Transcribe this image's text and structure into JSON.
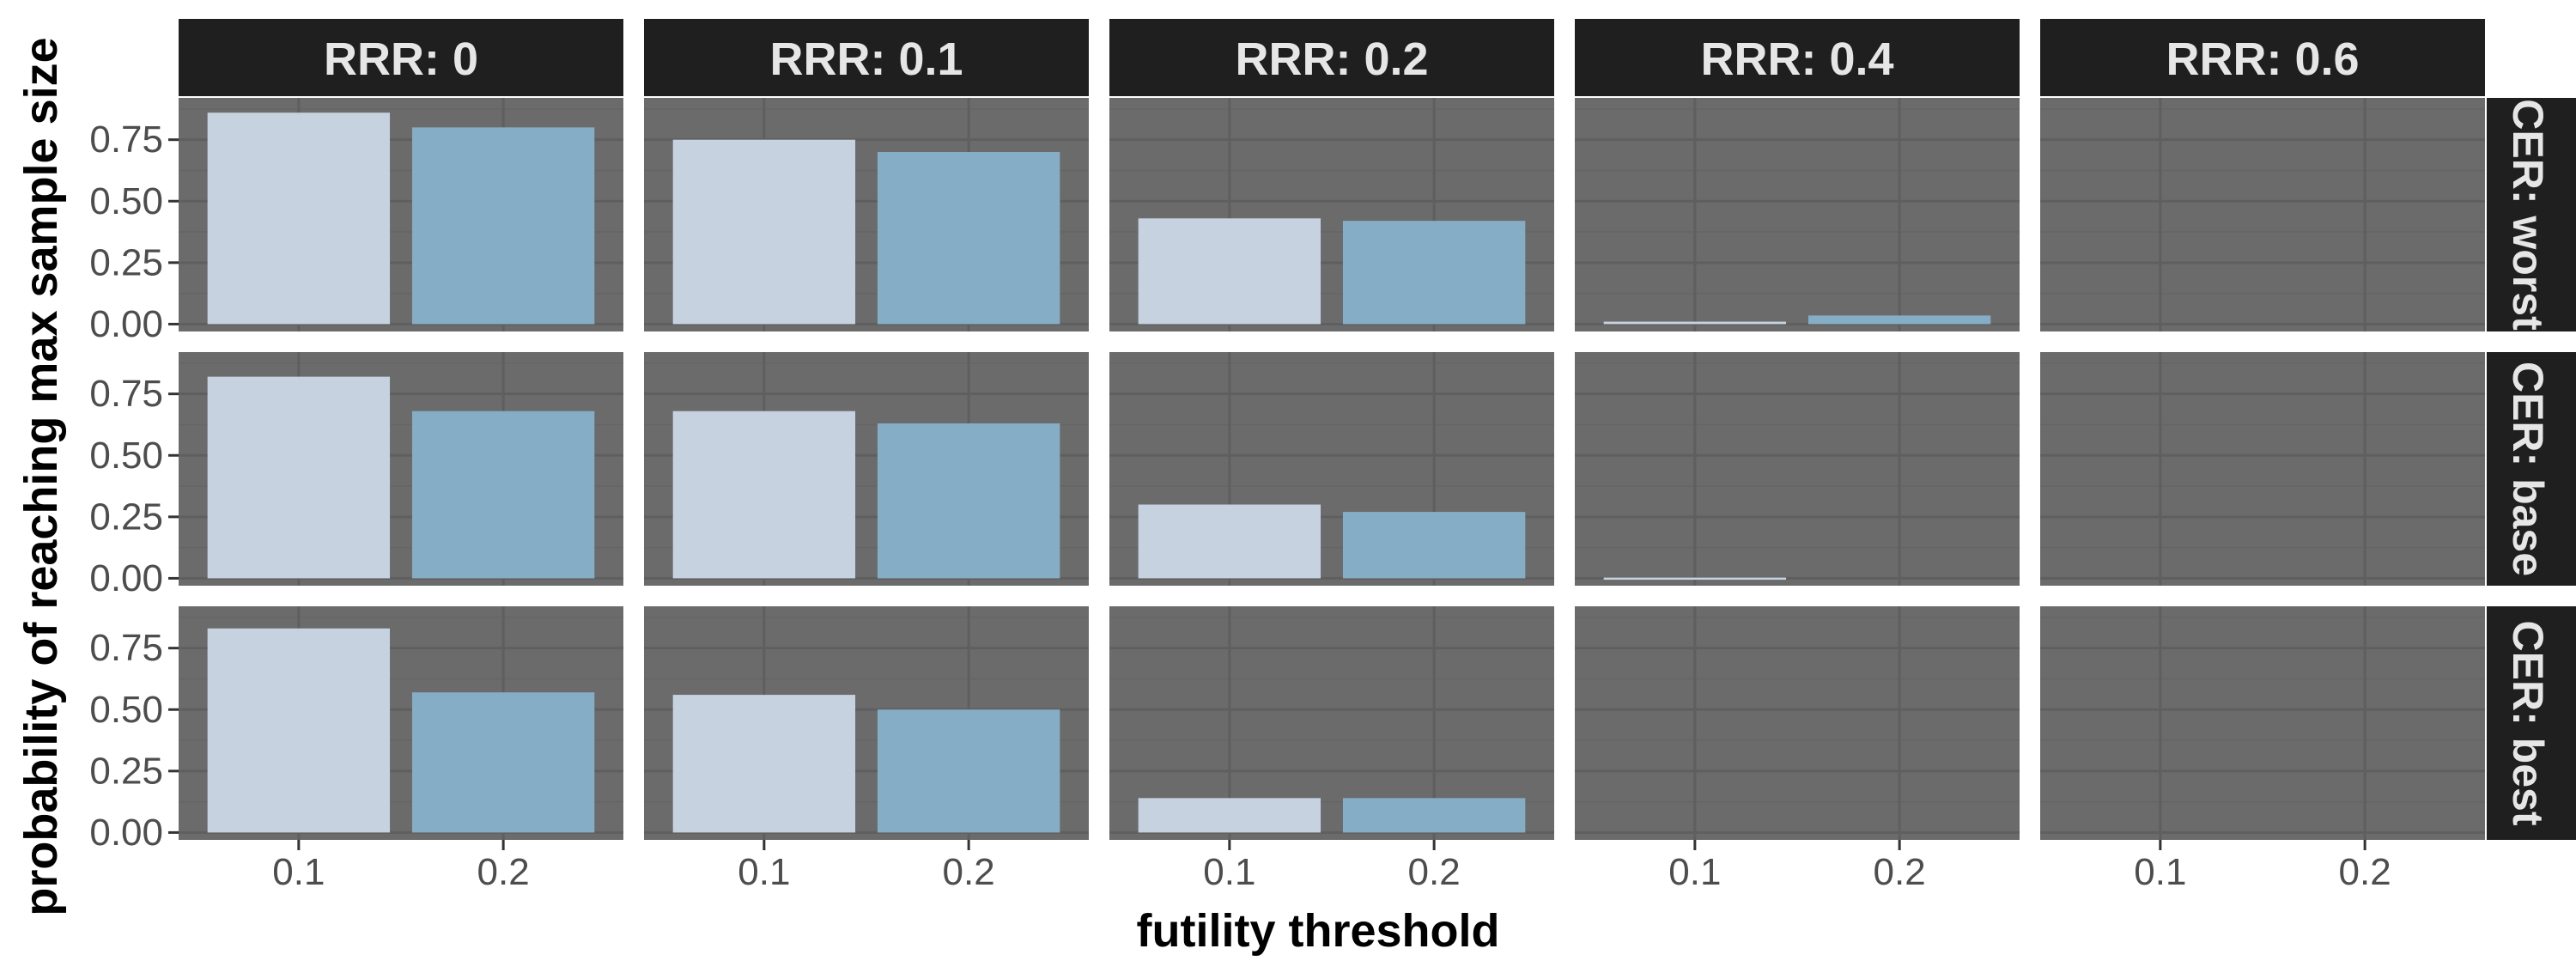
{
  "chart_data": {
    "type": "bar",
    "xlabel": "futility threshold",
    "ylabel": "probability of reaching max sample size",
    "x_categories": [
      "0.1",
      "0.2"
    ],
    "y_ticks": [
      "0.00",
      "0.25",
      "0.50",
      "0.75"
    ],
    "ylim": [
      -0.03,
      0.92
    ],
    "grid": true,
    "legend": "none",
    "col_facets": [
      "RRR: 0",
      "RRR: 0.1",
      "RRR: 0.2",
      "RRR: 0.4",
      "RRR: 0.6"
    ],
    "row_facets": [
      "CER: worst",
      "CER: base",
      "CER: best"
    ],
    "series": [
      {
        "category": "0.1",
        "color": "#c6d2df",
        "values": [
          [
            0.86,
            0.75,
            0.43,
            0.01,
            0.0
          ],
          [
            0.82,
            0.68,
            0.3,
            0.003,
            0.0
          ],
          [
            0.83,
            0.56,
            0.14,
            0.0,
            0.0
          ]
        ]
      },
      {
        "category": "0.2",
        "color": "#86adc6",
        "values": [
          [
            0.8,
            0.7,
            0.42,
            0.035,
            0.0
          ],
          [
            0.68,
            0.63,
            0.27,
            0.0,
            0.0
          ],
          [
            0.57,
            0.5,
            0.14,
            0.0,
            0.0
          ]
        ]
      }
    ],
    "colors": {
      "panel_bg": "#6b6b6b",
      "grid_major": "#5f5f5f",
      "grid_minor": "#656565",
      "strip_bg": "#1f1f1f",
      "strip_text": "#e6e6e6",
      "tick_text": "#4d4d4d",
      "axis_title": "#000000"
    }
  }
}
